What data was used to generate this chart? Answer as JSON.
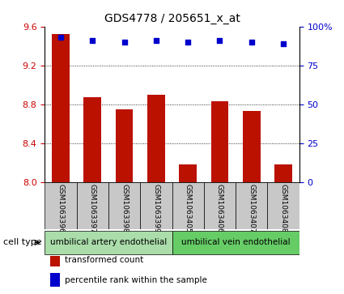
{
  "title": "GDS4778 / 205651_x_at",
  "samples": [
    "GSM1063396",
    "GSM1063397",
    "GSM1063398",
    "GSM1063399",
    "GSM1063405",
    "GSM1063406",
    "GSM1063407",
    "GSM1063408"
  ],
  "transformed_count": [
    9.52,
    8.87,
    8.75,
    8.9,
    8.18,
    8.83,
    8.73,
    8.18
  ],
  "percentile_rank": [
    93,
    91,
    90,
    91,
    90,
    91,
    90,
    89
  ],
  "ylim_left": [
    8.0,
    9.6
  ],
  "ylim_right": [
    0,
    100
  ],
  "yticks_left": [
    8.0,
    8.4,
    8.8,
    9.2,
    9.6
  ],
  "yticks_right": [
    0,
    25,
    50,
    75,
    100
  ],
  "bar_color": "#bb1100",
  "dot_color": "#0000cc",
  "cell_type_groups": [
    {
      "label": "umbilical artery endothelial",
      "indices": [
        0,
        1,
        2,
        3
      ],
      "color": "#aaddaa"
    },
    {
      "label": "umbilical vein endothelial",
      "indices": [
        4,
        5,
        6,
        7
      ],
      "color": "#66cc66"
    }
  ],
  "cell_type_label": "cell type",
  "legend_items": [
    {
      "label": "transformed count",
      "color": "#bb1100"
    },
    {
      "label": "percentile rank within the sample",
      "color": "#0000cc"
    }
  ],
  "tick_label_color_left": "#cc0000",
  "tick_label_color_right": "#0000cc",
  "bar_width": 0.55,
  "bar_base": 8.0,
  "bg_color_plot": "#ffffff",
  "bg_color_sample": "#c8c8c8"
}
